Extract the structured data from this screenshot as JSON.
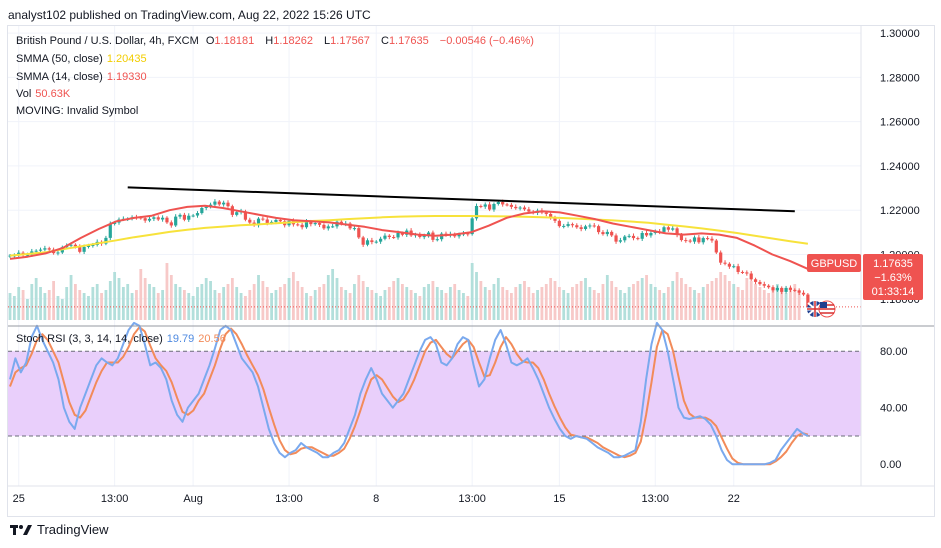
{
  "header": {
    "publisher": "analyst102 published on TradingView.com, Aug 22, 2022 15:26 UTC"
  },
  "legend": {
    "symbol": "British Pound / U.S. Dollar, 4h, FXCM",
    "o_label": "O",
    "o": "1.18181",
    "h_label": "H",
    "h": "1.18262",
    "l_label": "L",
    "l": "1.17567",
    "c_label": "C",
    "c": "1.17635",
    "change": "−0.00546 (−0.46%)",
    "smma50_label": "SMMA (50, close)",
    "smma50_value": "1.20435",
    "smma14_label": "SMMA (14, close)",
    "smma14_value": "1.19330",
    "vol_label": "Vol",
    "vol_value": "50.63K",
    "moving_label": "MOVING: Invalid Symbol"
  },
  "stoch": {
    "label": "Stoch RSI (3, 3, 14, 14, close)",
    "k": "19.79",
    "d": "20.56"
  },
  "price_badge": {
    "symbol": "GBPUSD",
    "price": "1.17635",
    "pct": "−1.63%",
    "countdown": "01:33:14"
  },
  "footer": {
    "brand": "TradingView"
  },
  "colors": {
    "up": "#26a69a",
    "down": "#ef5350",
    "smma50": "#f7e23b",
    "smma14": "#ef5350",
    "stoch_k": "#7aa9ee",
    "stoch_d": "#f28b5a",
    "band": "#e9cffb",
    "trendline": "#000000"
  },
  "chart_data": [
    {
      "type": "candlestick",
      "title": "British Pound / U.S. Dollar, 4h, FXCM",
      "y_ticks": [
        "1.30000",
        "1.28000",
        "1.26000",
        "1.24000",
        "1.22000",
        "1.20000",
        "1.18000"
      ],
      "ylim": [
        1.1695,
        1.3032
      ],
      "x_ticks": [
        "25",
        "13:00",
        "Aug",
        "13:00",
        "8",
        "13:00",
        "15",
        "13:00",
        "22"
      ],
      "x_tick_index": [
        2,
        24,
        42,
        64,
        84,
        106,
        126,
        148,
        166
      ],
      "close": [
        1.1995,
        1.1996,
        1.2008,
        1.1997,
        1.1999,
        1.2014,
        1.2017,
        1.2022,
        1.2028,
        1.2022,
        1.2006,
        1.2009,
        1.2033,
        1.2041,
        1.2044,
        1.2037,
        1.2012,
        1.2034,
        1.2041,
        1.2043,
        1.2057,
        1.2049,
        1.2075,
        1.2138,
        1.2144,
        1.2158,
        1.2161,
        1.2161,
        1.2168,
        1.2167,
        1.2164,
        1.2153,
        1.2161,
        1.2168,
        1.2158,
        1.2166,
        1.2145,
        1.2131,
        1.2171,
        1.2179,
        1.2157,
        1.2175,
        1.2176,
        1.2187,
        1.221,
        1.2215,
        1.2225,
        1.2239,
        1.2226,
        1.2234,
        1.2218,
        1.2179,
        1.2191,
        1.2195,
        1.2157,
        1.2144,
        1.2132,
        1.2162,
        1.2158,
        1.2142,
        1.2147,
        1.2156,
        1.215,
        1.2132,
        1.2152,
        1.2136,
        1.2134,
        1.2123,
        1.2149,
        1.2137,
        1.2142,
        1.2134,
        1.2118,
        1.2127,
        1.2127,
        1.2148,
        1.2138,
        1.214,
        1.2118,
        1.2119,
        1.2077,
        1.2044,
        1.2064,
        1.2056,
        1.2058,
        1.2071,
        1.2085,
        1.2079,
        1.2077,
        1.2097,
        1.2089,
        1.2108,
        1.2086,
        1.2091,
        1.2079,
        1.2083,
        1.2099,
        1.2066,
        1.2069,
        1.2094,
        1.2087,
        1.2092,
        1.2082,
        1.209,
        1.2095,
        1.2092,
        1.2163,
        1.2219,
        1.2216,
        1.2226,
        1.2203,
        1.2228,
        1.2237,
        1.2226,
        1.2224,
        1.2215,
        1.2209,
        1.2212,
        1.2204,
        1.2194,
        1.2188,
        1.2198,
        1.2189,
        1.2183,
        1.2164,
        1.2152,
        1.2128,
        1.2129,
        1.2137,
        1.2132,
        1.2123,
        1.2115,
        1.2127,
        1.2131,
        1.2128,
        1.2101,
        1.2092,
        1.2102,
        1.2086,
        1.2058,
        1.2064,
        1.2081,
        1.2084,
        1.2074,
        1.2071,
        1.2097,
        1.2086,
        1.2097,
        1.2104,
        1.2102,
        1.2123,
        1.2112,
        1.2118,
        1.2088,
        1.2065,
        1.2063,
        1.2058,
        1.2077,
        1.2055,
        1.2074,
        1.2071,
        1.2063,
        1.2009,
        1.1963,
        1.1958,
        1.1945,
        1.1947,
        1.1921,
        1.1919,
        1.1914,
        1.1888,
        1.1876,
        1.1866,
        1.1859,
        1.1852,
        1.1838,
        1.1849,
        1.1831,
        1.1849,
        1.184,
        1.1838,
        1.1827,
        1.1819,
        1.1764
      ],
      "smma50": [
        1.1995,
        1.2002,
        1.201,
        1.2024,
        1.2037,
        1.2051,
        1.2064,
        1.2078,
        1.209,
        1.2102,
        1.2112,
        1.212,
        1.2126,
        1.2132,
        1.2136,
        1.2141,
        1.2146,
        1.2151,
        1.2155,
        1.216,
        1.2164,
        1.2168,
        1.2171,
        1.2173,
        1.2174,
        1.2174,
        1.2174,
        1.2173,
        1.2172,
        1.217,
        1.2168,
        1.2165,
        1.2162,
        1.2158,
        1.2154,
        1.2149,
        1.2143,
        1.2135,
        1.2127,
        1.2118,
        1.2108,
        1.2097,
        1.2085,
        1.2072,
        1.206,
        1.2048
      ],
      "smma14": [
        1.198,
        1.199,
        1.2005,
        1.203,
        1.2075,
        1.2115,
        1.215,
        1.2165,
        1.2175,
        1.22,
        1.2215,
        1.222,
        1.221,
        1.2195,
        1.218,
        1.2165,
        1.2155,
        1.215,
        1.2145,
        1.2135,
        1.2125,
        1.211,
        1.21,
        1.209,
        1.2085,
        1.209,
        1.21,
        1.213,
        1.2165,
        1.2185,
        1.2195,
        1.219,
        1.2175,
        1.216,
        1.214,
        1.2125,
        1.211,
        1.2095,
        1.209,
        1.2095,
        1.209,
        1.2075,
        1.204,
        1.2,
        1.197,
        1.1935
      ],
      "trendline": [
        [
          27,
          1.2303
        ],
        [
          180,
          1.2195
        ]
      ],
      "last_price": 1.17635
    },
    {
      "type": "bar",
      "title": "Vol",
      "values": [
        0.45,
        0.4,
        0.55,
        0.5,
        0.35,
        0.6,
        0.7,
        0.55,
        0.45,
        0.5,
        0.65,
        0.4,
        0.35,
        0.55,
        0.75,
        0.6,
        0.5,
        0.45,
        0.4,
        0.55,
        0.6,
        0.45,
        0.5,
        0.65,
        0.8,
        0.7,
        0.55,
        0.6,
        0.45,
        0.5,
        0.85,
        0.7,
        0.6,
        0.55,
        0.45,
        0.5,
        0.95,
        0.75,
        0.6,
        0.55,
        0.5,
        0.45,
        0.4,
        0.55,
        0.6,
        0.7,
        0.65,
        0.5,
        0.45,
        0.55,
        0.6,
        0.7,
        0.55,
        0.45,
        0.4,
        0.5,
        0.6,
        0.75,
        0.65,
        0.55,
        0.45,
        0.5,
        0.55,
        0.6,
        0.7,
        0.8,
        0.65,
        0.55,
        0.45,
        0.4,
        0.5,
        0.55,
        0.6,
        0.75,
        0.85,
        0.7,
        0.55,
        0.5,
        0.45,
        0.6,
        0.75,
        0.65,
        0.55,
        0.5,
        0.45,
        0.4,
        0.5,
        0.55,
        0.65,
        0.7,
        0.6,
        0.55,
        0.5,
        0.45,
        0.4,
        0.55,
        0.6,
        0.65,
        0.55,
        0.5,
        0.45,
        0.55,
        0.6,
        0.5,
        0.45,
        0.4,
        0.95,
        0.8,
        0.65,
        0.55,
        0.5,
        0.6,
        0.7,
        0.55,
        0.5,
        0.45,
        0.55,
        0.6,
        0.65,
        0.55,
        0.45,
        0.5,
        0.55,
        0.6,
        0.7,
        0.65,
        0.55,
        0.5,
        0.45,
        0.55,
        0.6,
        0.65,
        0.7,
        0.55,
        0.5,
        0.45,
        0.6,
        0.75,
        0.65,
        0.55,
        0.5,
        0.45,
        0.55,
        0.6,
        0.65,
        0.7,
        0.75,
        0.6,
        0.55,
        0.5,
        0.45,
        0.55,
        0.65,
        0.8,
        0.7,
        0.6,
        0.55,
        0.5,
        0.45,
        0.55,
        0.6,
        0.65,
        0.7,
        0.8,
        0.75,
        0.65,
        0.6,
        0.55,
        0.5,
        0.7,
        0.65,
        0.6,
        0.55,
        0.5,
        0.45,
        0.55,
        0.6,
        0.5,
        0.45,
        0.55,
        0.6,
        0.45
      ],
      "ylim": [
        0,
        1
      ]
    },
    {
      "type": "line",
      "title": "Stoch RSI (3, 3, 14, 14, close)",
      "y_ticks": [
        "80.00",
        "40.00",
        "0.00"
      ],
      "ylim": [
        -14,
        95
      ],
      "band": [
        20,
        80
      ],
      "series": [
        {
          "name": "K",
          "values": [
            60,
            75,
            65,
            72,
            90,
            98,
            88,
            80,
            72,
            60,
            40,
            30,
            25,
            40,
            50,
            60,
            70,
            75,
            72,
            70,
            75,
            85,
            95,
            100,
            98,
            85,
            70,
            72,
            68,
            60,
            45,
            35,
            30,
            40,
            45,
            50,
            60,
            70,
            82,
            95,
            98,
            95,
            85,
            75,
            70,
            65,
            55,
            40,
            25,
            15,
            8,
            5,
            8,
            10,
            15,
            12,
            10,
            8,
            5,
            5,
            8,
            10,
            15,
            25,
            35,
            50,
            60,
            68,
            60,
            50,
            45,
            40,
            45,
            50,
            60,
            70,
            80,
            88,
            90,
            85,
            72,
            70,
            75,
            85,
            90,
            88,
            70,
            55,
            60,
            75,
            88,
            95,
            85,
            72,
            70,
            72,
            75,
            68,
            60,
            50,
            40,
            32,
            25,
            20,
            18,
            20,
            19,
            18,
            15,
            12,
            10,
            8,
            5,
            5,
            6,
            8,
            10,
            30,
            60,
            85,
            100,
            95,
            80,
            60,
            40,
            33,
            32,
            33,
            34,
            32,
            28,
            20,
            10,
            3,
            0,
            0,
            0,
            0,
            0,
            0,
            0,
            1,
            3,
            10,
            15,
            20,
            25,
            22,
            20
          ]
        },
        {
          "name": "D",
          "values": [
            55,
            65,
            68,
            70,
            78,
            88,
            92,
            88,
            80,
            72,
            58,
            44,
            35,
            33,
            38,
            48,
            58,
            66,
            72,
            72,
            72,
            76,
            83,
            92,
            97,
            94,
            84,
            75,
            70,
            66,
            58,
            47,
            37,
            35,
            38,
            45,
            50,
            60,
            70,
            82,
            92,
            96,
            92,
            85,
            77,
            70,
            63,
            53,
            40,
            28,
            17,
            10,
            7,
            8,
            11,
            12,
            12,
            10,
            8,
            6,
            6,
            8,
            11,
            18,
            27,
            38,
            50,
            60,
            63,
            60,
            54,
            48,
            44,
            46,
            52,
            60,
            70,
            80,
            86,
            88,
            83,
            78,
            75,
            80,
            85,
            88,
            83,
            72,
            62,
            63,
            72,
            83,
            90,
            85,
            78,
            73,
            72,
            72,
            68,
            60,
            50,
            41,
            33,
            26,
            21,
            20,
            19,
            19,
            17,
            15,
            12,
            10,
            8,
            6,
            5,
            6,
            8,
            16,
            35,
            58,
            83,
            95,
            92,
            80,
            62,
            45,
            36,
            33,
            33,
            33,
            31,
            27,
            19,
            11,
            4,
            1,
            0,
            0,
            0,
            0,
            0,
            0,
            2,
            5,
            9,
            15,
            20,
            22,
            21
          ]
        }
      ]
    }
  ]
}
